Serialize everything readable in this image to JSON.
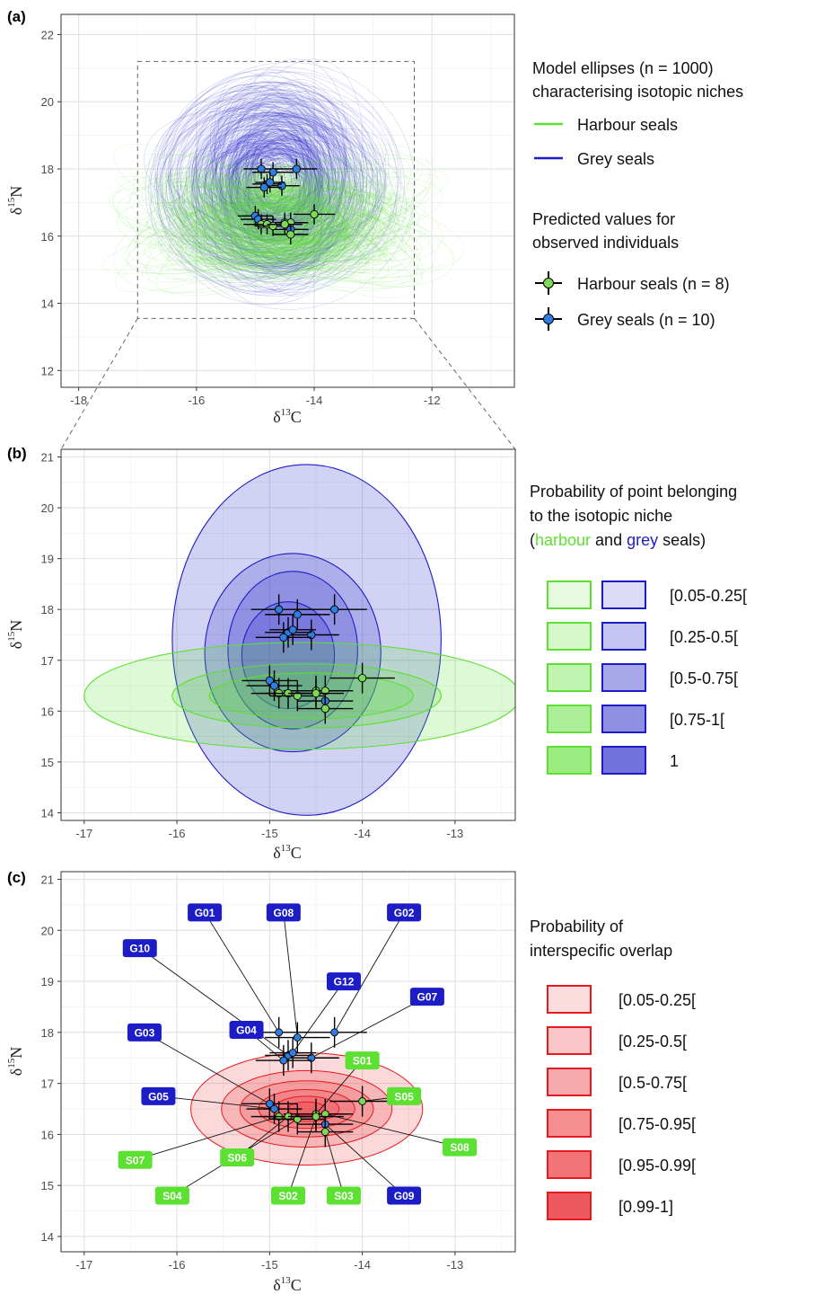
{
  "chart_data": [
    {
      "panel": "(a)",
      "type": "scatter",
      "xlabel": "δ13C",
      "ylabel": "δ15N",
      "xlim": [
        -18.3,
        -10.6
      ],
      "ylim": [
        11.5,
        22.6
      ],
      "xticks": [
        -18,
        -16,
        -14,
        -12
      ],
      "yticks": [
        12,
        14,
        16,
        18,
        20,
        22
      ],
      "inset_box": {
        "x": [
          -17.0,
          -12.3
        ],
        "y": [
          13.55,
          21.2
        ]
      },
      "ellipse_sample_count": 1000,
      "ellipse_centers": [
        {
          "name": "Harbour seals",
          "x": -14.6,
          "y": 16.4,
          "spread_x": 1.8,
          "spread_y": 1.0
        },
        {
          "name": "Grey seals",
          "x": -14.7,
          "y": 17.6,
          "spread_x": 1.3,
          "spread_y": 2.3
        }
      ],
      "legend": {
        "title1": "Model ellipses (n = 1000)",
        "title2": "characterising isotopic niches",
        "lines": [
          "Harbour seals",
          "Grey seals"
        ],
        "title3": "Predicted values for",
        "title4": "observed individuals",
        "points": [
          "Harbour seals (n = 8)",
          "Grey seals (n = 10)"
        ]
      }
    },
    {
      "panel": "(b)",
      "type": "scatter",
      "xlabel": "δ13C",
      "ylabel": "δ15N",
      "xlim": [
        -17.25,
        -12.35
      ],
      "ylim": [
        13.85,
        21.15
      ],
      "xticks": [
        -17,
        -16,
        -15,
        -14,
        -13
      ],
      "yticks": [
        14,
        15,
        16,
        17,
        18,
        19,
        20,
        21
      ],
      "niche_ellipses": {
        "harbour": [
          {
            "cx": -14.65,
            "cy": 16.3,
            "rx": 2.35,
            "ry": 1.05
          },
          {
            "cx": -14.6,
            "cy": 16.3,
            "rx": 1.45,
            "ry": 0.63
          },
          {
            "cx": -14.55,
            "cy": 16.3,
            "rx": 1.1,
            "ry": 0.45
          }
        ],
        "grey": [
          {
            "cx": -14.6,
            "cy": 17.4,
            "rx": 1.45,
            "ry": 3.45
          },
          {
            "cx": -14.75,
            "cy": 17.15,
            "rx": 0.95,
            "ry": 1.95
          },
          {
            "cx": -14.75,
            "cy": 17.2,
            "rx": 0.7,
            "ry": 1.55
          },
          {
            "cx": -14.8,
            "cy": 17.1,
            "rx": 0.5,
            "ry": 1.05
          }
        ]
      },
      "legend": {
        "title1": "Probability of point belonging",
        "title2": "to the isotopic niche",
        "title3_open": "(",
        "title3_harbour": "harbour",
        "title3_and": " and ",
        "title3_grey": "grey",
        "title3_close": " seals)",
        "classes": [
          "[0.05-0.25[",
          "[0.25-0.5[",
          "[0.5-0.75[",
          "[0.75-1[",
          "1"
        ]
      }
    },
    {
      "panel": "(c)",
      "type": "scatter",
      "xlabel": "δ13C",
      "ylabel": "δ15N",
      "xlim": [
        -17.25,
        -12.35
      ],
      "ylim": [
        13.7,
        21.15
      ],
      "xticks": [
        -17,
        -16,
        -15,
        -14,
        -13
      ],
      "yticks": [
        14,
        15,
        16,
        17,
        18,
        19,
        20,
        21
      ],
      "overlap_ellipses": [
        {
          "cx": -14.6,
          "cy": 16.5,
          "rx": 1.25,
          "ry": 1.1
        },
        {
          "cx": -14.6,
          "cy": 16.5,
          "rx": 0.92,
          "ry": 0.75
        },
        {
          "cx": -14.6,
          "cy": 16.5,
          "rx": 0.72,
          "ry": 0.55
        },
        {
          "cx": -14.6,
          "cy": 16.5,
          "rx": 0.52,
          "ry": 0.38
        },
        {
          "cx": -14.6,
          "cy": 16.5,
          "rx": 0.35,
          "ry": 0.25
        },
        {
          "cx": -14.6,
          "cy": 16.5,
          "rx": 0.2,
          "ry": 0.14
        }
      ],
      "labels": [
        {
          "id": "G01",
          "species": "grey",
          "lx": -15.7,
          "ly": 20.35
        },
        {
          "id": "G08",
          "species": "grey",
          "lx": -14.85,
          "ly": 20.35
        },
        {
          "id": "G02",
          "species": "grey",
          "lx": -13.55,
          "ly": 20.35
        },
        {
          "id": "G10",
          "species": "grey",
          "lx": -16.4,
          "ly": 19.65
        },
        {
          "id": "G12",
          "species": "grey",
          "lx": -14.2,
          "ly": 19.0
        },
        {
          "id": "G07",
          "species": "grey",
          "lx": -13.3,
          "ly": 18.7
        },
        {
          "id": "G03",
          "species": "grey",
          "lx": -16.35,
          "ly": 18.0
        },
        {
          "id": "G04",
          "species": "grey",
          "lx": -15.25,
          "ly": 18.05
        },
        {
          "id": "S01",
          "species": "harbour",
          "lx": -14.0,
          "ly": 17.45
        },
        {
          "id": "G05",
          "species": "grey",
          "lx": -16.2,
          "ly": 16.75
        },
        {
          "id": "S05",
          "species": "harbour",
          "lx": -13.55,
          "ly": 16.75
        },
        {
          "id": "S08",
          "species": "harbour",
          "lx": -12.95,
          "ly": 15.75
        },
        {
          "id": "S07",
          "species": "harbour",
          "lx": -16.45,
          "ly": 15.5
        },
        {
          "id": "S06",
          "species": "harbour",
          "lx": -15.35,
          "ly": 15.55
        },
        {
          "id": "S04",
          "species": "harbour",
          "lx": -16.05,
          "ly": 14.8
        },
        {
          "id": "S02",
          "species": "harbour",
          "lx": -14.8,
          "ly": 14.8
        },
        {
          "id": "S03",
          "species": "harbour",
          "lx": -14.2,
          "ly": 14.8
        },
        {
          "id": "G09",
          "species": "grey",
          "lx": -13.55,
          "ly": 14.8
        }
      ],
      "legend": {
        "title1": "Probability of",
        "title2": "interspecific overlap",
        "classes": [
          "[0.05-0.25[",
          "[0.25-0.5[",
          "[0.5-0.75[",
          "[0.75-0.95[",
          "[0.95-0.99[",
          "[0.99-1]"
        ]
      }
    }
  ],
  "individuals": [
    {
      "id": "G01",
      "species": "grey",
      "x": -14.9,
      "y": 18.0,
      "ex": 0.3,
      "ey": 0.3
    },
    {
      "id": "G02",
      "species": "grey",
      "x": -14.3,
      "y": 18.0,
      "ex": 0.35,
      "ey": 0.3
    },
    {
      "id": "G07",
      "species": "grey",
      "x": -14.55,
      "y": 17.5,
      "ex": 0.3,
      "ey": 0.3
    },
    {
      "id": "G08",
      "species": "grey",
      "x": -14.7,
      "y": 17.9,
      "ex": 0.35,
      "ey": 0.3
    },
    {
      "id": "G10",
      "species": "grey",
      "x": -14.8,
      "y": 17.55,
      "ex": 0.25,
      "ey": 0.3
    },
    {
      "id": "G12",
      "species": "grey",
      "x": -14.75,
      "y": 17.6,
      "ex": 0.25,
      "ey": 0.3
    },
    {
      "id": "G04",
      "species": "grey",
      "x": -14.85,
      "y": 17.45,
      "ex": 0.3,
      "ey": 0.3
    },
    {
      "id": "G03",
      "species": "grey",
      "x": -15.0,
      "y": 16.6,
      "ex": 0.3,
      "ey": 0.3
    },
    {
      "id": "G05",
      "species": "grey",
      "x": -14.95,
      "y": 16.5,
      "ex": 0.3,
      "ey": 0.3
    },
    {
      "id": "G09",
      "species": "grey",
      "x": -14.4,
      "y": 16.2,
      "ex": 0.3,
      "ey": 0.3
    },
    {
      "id": "S01",
      "species": "harbour",
      "x": -14.5,
      "y": 16.4,
      "ex": 0.35,
      "ey": 0.3
    },
    {
      "id": "S05",
      "species": "harbour",
      "x": -14.0,
      "y": 16.65,
      "ex": 0.35,
      "ey": 0.3
    },
    {
      "id": "S08",
      "species": "harbour",
      "x": -14.4,
      "y": 16.4,
      "ex": 0.3,
      "ey": 0.3
    },
    {
      "id": "S07",
      "species": "harbour",
      "x": -14.9,
      "y": 16.35,
      "ex": 0.3,
      "ey": 0.3
    },
    {
      "id": "S06",
      "species": "harbour",
      "x": -14.8,
      "y": 16.35,
      "ex": 0.3,
      "ey": 0.3
    },
    {
      "id": "S04",
      "species": "harbour",
      "x": -14.7,
      "y": 16.3,
      "ex": 0.3,
      "ey": 0.3
    },
    {
      "id": "S02",
      "species": "harbour",
      "x": -14.5,
      "y": 16.35,
      "ex": 0.3,
      "ey": 0.3
    },
    {
      "id": "S03",
      "species": "harbour",
      "x": -14.4,
      "y": 16.05,
      "ex": 0.3,
      "ey": 0.3
    }
  ],
  "colors": {
    "harbour": "#5ce032",
    "grey": "#1d1dc8",
    "harbour_point": "#7ed957",
    "grey_point": "#2f7de0",
    "overlap": "#e8191e"
  }
}
